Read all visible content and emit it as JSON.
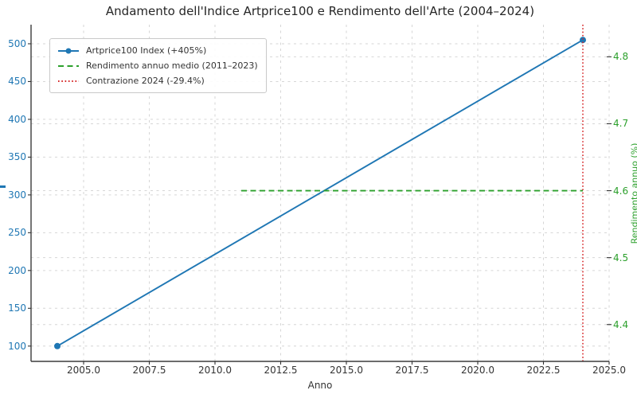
{
  "chart_data": {
    "type": "line",
    "title": "Andamento dell'Indice Artprice100 e Rendimento dell'Arte (2004–2024)",
    "xlabel": "Anno",
    "xlim": [
      2003,
      2025
    ],
    "grid": true,
    "grid_color": "#d6d6d6",
    "x_ticks": [
      {
        "v": 2005,
        "label": "2005.0"
      },
      {
        "v": 2007.5,
        "label": "2007.5"
      },
      {
        "v": 2010,
        "label": "2010.0"
      },
      {
        "v": 2012.5,
        "label": "2012.5"
      },
      {
        "v": 2015,
        "label": "2015.0"
      },
      {
        "v": 2017.5,
        "label": "2017.5"
      },
      {
        "v": 2020,
        "label": "2020.0"
      },
      {
        "v": 2022.5,
        "label": "2022.5"
      },
      {
        "v": 2025,
        "label": "2025.0"
      }
    ],
    "axes": {
      "left": {
        "color": "#1f77b4",
        "lim": [
          79.75,
          525.25
        ],
        "ticks": [
          {
            "v": 100,
            "label": "100"
          },
          {
            "v": 150,
            "label": "150"
          },
          {
            "v": 200,
            "label": "200"
          },
          {
            "v": 250,
            "label": "250"
          },
          {
            "v": 300,
            "label": "300"
          },
          {
            "v": 350,
            "label": "350"
          },
          {
            "v": 400,
            "label": "400"
          },
          {
            "v": 450,
            "label": "450"
          },
          {
            "v": 500,
            "label": "500"
          }
        ]
      },
      "right": {
        "color": "#2ca02c",
        "lim": [
          4.345,
          4.848
        ],
        "label": "Rendimento annuo (%)",
        "ticks": [
          {
            "v": 4.4,
            "label": "4.4"
          },
          {
            "v": 4.5,
            "label": "4.5"
          },
          {
            "v": 4.6,
            "label": "4.6"
          },
          {
            "v": 4.7,
            "label": "4.7"
          },
          {
            "v": 4.8,
            "label": "4.8"
          }
        ]
      }
    },
    "series": [
      {
        "name": "Artprice100 Index (+405%)",
        "kind": "line",
        "axis": "left",
        "color": "#1f77b4",
        "linestyle": "solid",
        "marker": "circle",
        "points": [
          [
            2004,
            100
          ],
          [
            2024,
            505
          ]
        ]
      },
      {
        "name": "Rendimento annuo medio (2011–2023)",
        "kind": "hline",
        "axis": "right",
        "color": "#2ca02c",
        "linestyle": "dashed",
        "y": 4.6,
        "x_range": [
          2011,
          2024
        ]
      },
      {
        "name": "Contrazione 2024 (-29.4%)",
        "kind": "vline",
        "color": "#d62728",
        "linestyle": "dotted",
        "x": 2024
      }
    ],
    "legend": {
      "position": "upper left"
    }
  }
}
